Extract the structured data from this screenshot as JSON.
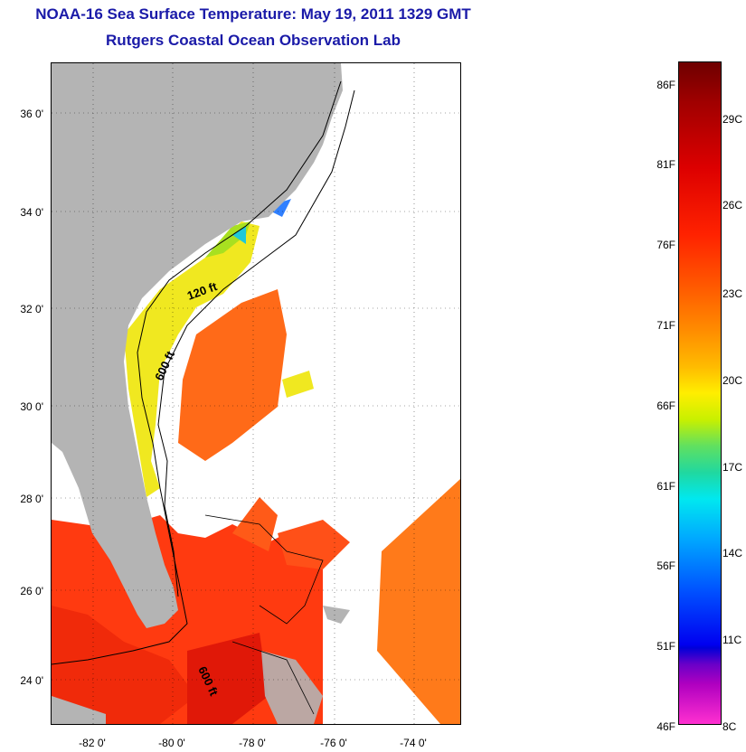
{
  "header": {
    "title": "NOAA-16 Sea Surface Temperature:  May 19, 2011 1329 GMT",
    "subtitle": "Rutgers Coastal Ocean Observation Lab"
  },
  "map": {
    "lat_ticks": [
      "36 0'",
      "34 0'",
      "32 0'",
      "30 0'",
      "28 0'",
      "26 0'",
      "24 0'"
    ],
    "lon_ticks": [
      "-82 0'",
      "-80 0'",
      "-78 0'",
      "-76 0'",
      "-74 0'"
    ],
    "contour_labels": [
      "120 ft",
      "600 ft",
      "600 ft"
    ],
    "colors": {
      "land": "#b4b4b4",
      "cloud": "#ffffff",
      "warm_water": "#ff3a10",
      "shelf_water": "#f0e820"
    }
  },
  "colorbar": {
    "fahrenheit": [
      "86F",
      "81F",
      "76F",
      "71F",
      "66F",
      "61F",
      "56F",
      "51F",
      "46F"
    ],
    "celsius": [
      "29C",
      "26C",
      "23C",
      "20C",
      "17C",
      "14C",
      "11C",
      "8C"
    ]
  }
}
